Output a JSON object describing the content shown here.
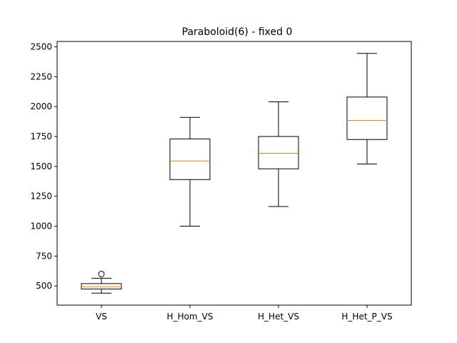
{
  "chart_data": {
    "type": "box",
    "title": "Paraboloid(6) - fixed 0",
    "xlabel": "",
    "ylabel": "",
    "ylim": [
      340,
      2545
    ],
    "yticks": [
      500,
      750,
      1000,
      1250,
      1500,
      1750,
      2000,
      2250,
      2500
    ],
    "categories": [
      "VS",
      "H_Hom_VS",
      "H_Het_VS",
      "H_Het_P_VS"
    ],
    "boxes": [
      {
        "whisker_low": 440,
        "q1": 475,
        "median": 493,
        "q3": 520,
        "whisker_high": 565,
        "outliers": [
          600
        ]
      },
      {
        "whisker_low": 1000,
        "q1": 1390,
        "median": 1545,
        "q3": 1730,
        "whisker_high": 1910,
        "outliers": []
      },
      {
        "whisker_low": 1165,
        "q1": 1480,
        "median": 1610,
        "q3": 1750,
        "whisker_high": 2040,
        "outliers": []
      },
      {
        "whisker_low": 1520,
        "q1": 1725,
        "median": 1885,
        "q3": 2080,
        "whisker_high": 2445,
        "outliers": []
      }
    ],
    "colors": {
      "box": "#000000",
      "median": "#ff7f0e",
      "background": "#ffffff"
    },
    "grid": false
  }
}
